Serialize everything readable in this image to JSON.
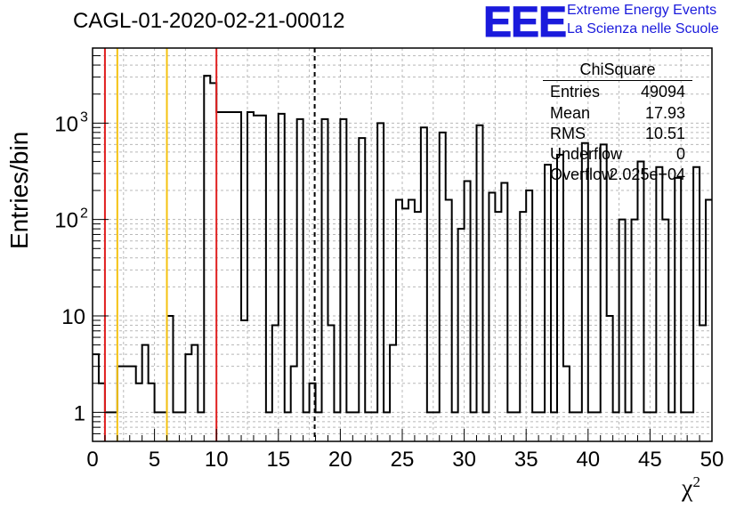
{
  "title": "CAGL-01-2020-02-21-00012",
  "logo": {
    "text": "EEE",
    "line1": "Extreme Energy Events",
    "line2": "La Scienza nelle Scuole",
    "color": "#1a1adc"
  },
  "stats": {
    "name": "ChiSquare",
    "rows": [
      {
        "label": "Entries",
        "value": "49094"
      },
      {
        "label": "Mean",
        "value": "17.93"
      },
      {
        "label": "RMS",
        "value": "10.51"
      },
      {
        "label": "Underflow",
        "value": "0"
      },
      {
        "label": "Overflow",
        "value": "2.025e+04"
      }
    ]
  },
  "chart_data": {
    "type": "histogram",
    "title": "CAGL-01-2020-02-21-00012",
    "xlabel": "χ",
    "xlabel_sup": "2",
    "ylabel": "Entries/bin",
    "xlim": [
      0,
      50
    ],
    "ylim": [
      0.5,
      6000
    ],
    "yscale": "log",
    "grid": true,
    "bin_width": 0.5,
    "x_ticks": [
      "0",
      "5",
      "10",
      "15",
      "20",
      "25",
      "30",
      "35",
      "40",
      "45",
      "50"
    ],
    "y_ticks": [
      {
        "value": 1,
        "label": "1"
      },
      {
        "value": 10,
        "label": "10"
      },
      {
        "value": 100,
        "label": "10",
        "exp": "2"
      },
      {
        "value": 1000,
        "label": "10",
        "exp": "3"
      }
    ],
    "values": [
      4,
      2,
      1,
      1,
      3,
      3,
      3,
      2,
      5,
      2,
      1,
      1,
      10,
      1,
      1,
      4,
      5,
      1,
      3100,
      2600,
      1300,
      1300,
      1300,
      1300,
      9,
      1300,
      1200,
      1200,
      1,
      8,
      1250,
      1,
      3,
      1100,
      1,
      2,
      1,
      1100,
      8,
      1,
      1100,
      1,
      1,
      700,
      1,
      1,
      1000,
      1,
      5,
      160,
      130,
      160,
      120,
      900,
      1,
      1,
      800,
      160,
      1,
      80,
      250,
      1,
      950,
      1,
      190,
      120,
      240,
      1,
      1,
      120,
      200,
      1,
      1,
      370,
      1,
      470,
      3,
      1,
      1,
      620,
      1,
      1,
      600,
      10,
      1,
      100,
      1,
      100,
      400,
      1,
      1,
      350,
      100,
      1,
      270,
      1,
      1,
      350,
      8,
      160
    ],
    "vertical_lines": [
      {
        "x": 1,
        "color": "#e01e1e",
        "style": "solid"
      },
      {
        "x": 10,
        "color": "#e01e1e",
        "style": "solid"
      },
      {
        "x": 2,
        "color": "#f5c211",
        "style": "solid"
      },
      {
        "x": 6,
        "color": "#f5c211",
        "style": "solid"
      },
      {
        "x": 17.93,
        "color": "#000000",
        "style": "dashed"
      }
    ]
  }
}
